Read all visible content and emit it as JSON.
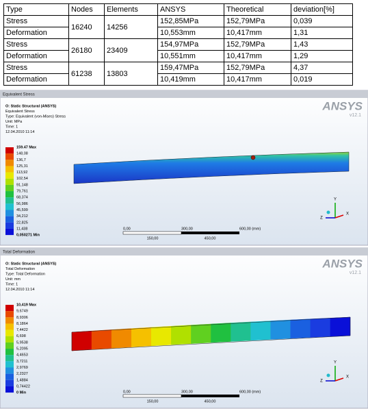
{
  "table": {
    "header": [
      "Type",
      "Nodes",
      "Elements",
      "ANSYS",
      "Theoretical",
      "deviation[%]"
    ],
    "groups": [
      {
        "nodes": "16240",
        "elements": "14256",
        "rows": [
          [
            "Stress",
            "152,85MPa",
            "152,79MPa",
            "0,039"
          ],
          [
            "Deformation",
            "10,553mm",
            "10,417mm",
            "1,31"
          ]
        ]
      },
      {
        "nodes": "26180",
        "elements": "23409",
        "rows": [
          [
            "Stress",
            "154,97MPa",
            "152,79MPa",
            "1,43"
          ],
          [
            "Deformation",
            "10,551mm",
            "10,417mm",
            "1,29"
          ]
        ]
      },
      {
        "nodes": "61238",
        "elements": "13803",
        "rows": [
          [
            "Stress",
            "159,47MPa",
            "152,79MPa",
            "4,37"
          ],
          [
            "Deformation",
            "10,419mm",
            "10,417mm",
            "0,019"
          ]
        ]
      }
    ]
  },
  "panels": [
    {
      "header": "Equivalent Stress",
      "info": [
        "O: Static Structural (ANSYS)",
        "Equivalent Stress",
        "Type: Equivalent (von-Mises) Stress",
        "Unit: MPa",
        "Time: 1",
        "12.04.2010 11:14"
      ],
      "legend": [
        "159.47 Max",
        "148,08",
        "136,7",
        "125,31",
        "113,92",
        "102,54",
        "91,148",
        "79,761",
        "68,374",
        "56,986",
        "45,599",
        "34,212",
        "22,825",
        "11,438",
        "0,050271 Min"
      ],
      "scale_top": [
        "0,00",
        "300,00",
        "600,00 (mm)"
      ],
      "scale_bottom": [
        "150,00",
        "450,00"
      ]
    },
    {
      "header": "Total Deformation",
      "info": [
        "O: Static Structural (ANSYS)",
        "Total Deformation",
        "Type: Total Deformation",
        "Unit: mm",
        "Time: 1",
        "12.04.2010 11:14"
      ],
      "legend": [
        "10,419 Max",
        "9,6749",
        "8,9306",
        "8,1864",
        "7,4422",
        "6,698",
        "5,9538",
        "5,2095",
        "4,4653",
        "3,7211",
        "2,9769",
        "2,2327",
        "1,4884",
        "0,74422",
        "0 Min"
      ],
      "scale_top": [
        "0,00",
        "300,00",
        "600,00 (mm)"
      ],
      "scale_bottom": [
        "150,00",
        "450,00"
      ]
    }
  ],
  "logo": {
    "name": "ANSYS",
    "version": "v12.1"
  },
  "axes": {
    "y": "Y",
    "z": "Z",
    "x": "X"
  }
}
